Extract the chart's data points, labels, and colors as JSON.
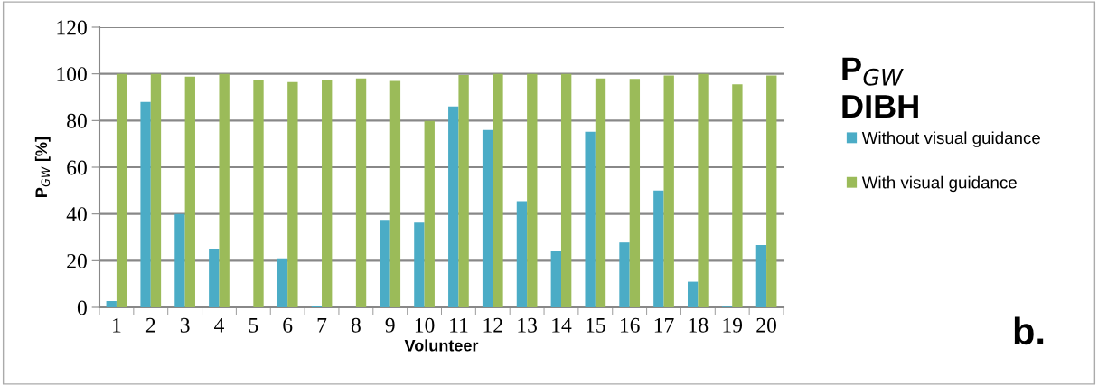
{
  "chart_data": {
    "type": "bar",
    "title": "P$_{GW}$\nDIBH",
    "xlabel": "Volunteer",
    "ylabel": "P$_{GW}$ [%]",
    "categories": [
      "1",
      "2",
      "3",
      "4",
      "5",
      "6",
      "7",
      "8",
      "9",
      "10",
      "11",
      "12",
      "13",
      "14",
      "15",
      "16",
      "17",
      "18",
      "19",
      "20"
    ],
    "series": [
      {
        "name": "Without visual guidance",
        "color": "#4bacc6",
        "values": [
          2.7,
          88,
          40,
          25,
          0,
          21,
          0.5,
          0,
          37.5,
          36.3,
          86,
          76,
          45.5,
          24,
          75.2,
          27.8,
          50,
          11,
          0.3,
          26.7
        ]
      },
      {
        "name": "With visual guidance",
        "color": "#9bbb59",
        "values": [
          100,
          100,
          98.8,
          100,
          97.2,
          96.5,
          97.5,
          98,
          97,
          79.8,
          99.5,
          100,
          100,
          100,
          98,
          97.8,
          99.3,
          100,
          95.5,
          99.3
        ]
      }
    ],
    "ylim": [
      0,
      120
    ],
    "yticks": [
      0,
      20,
      40,
      60,
      80,
      100,
      120
    ],
    "grid": "y",
    "legend": "right",
    "annotations": [
      "b."
    ]
  }
}
